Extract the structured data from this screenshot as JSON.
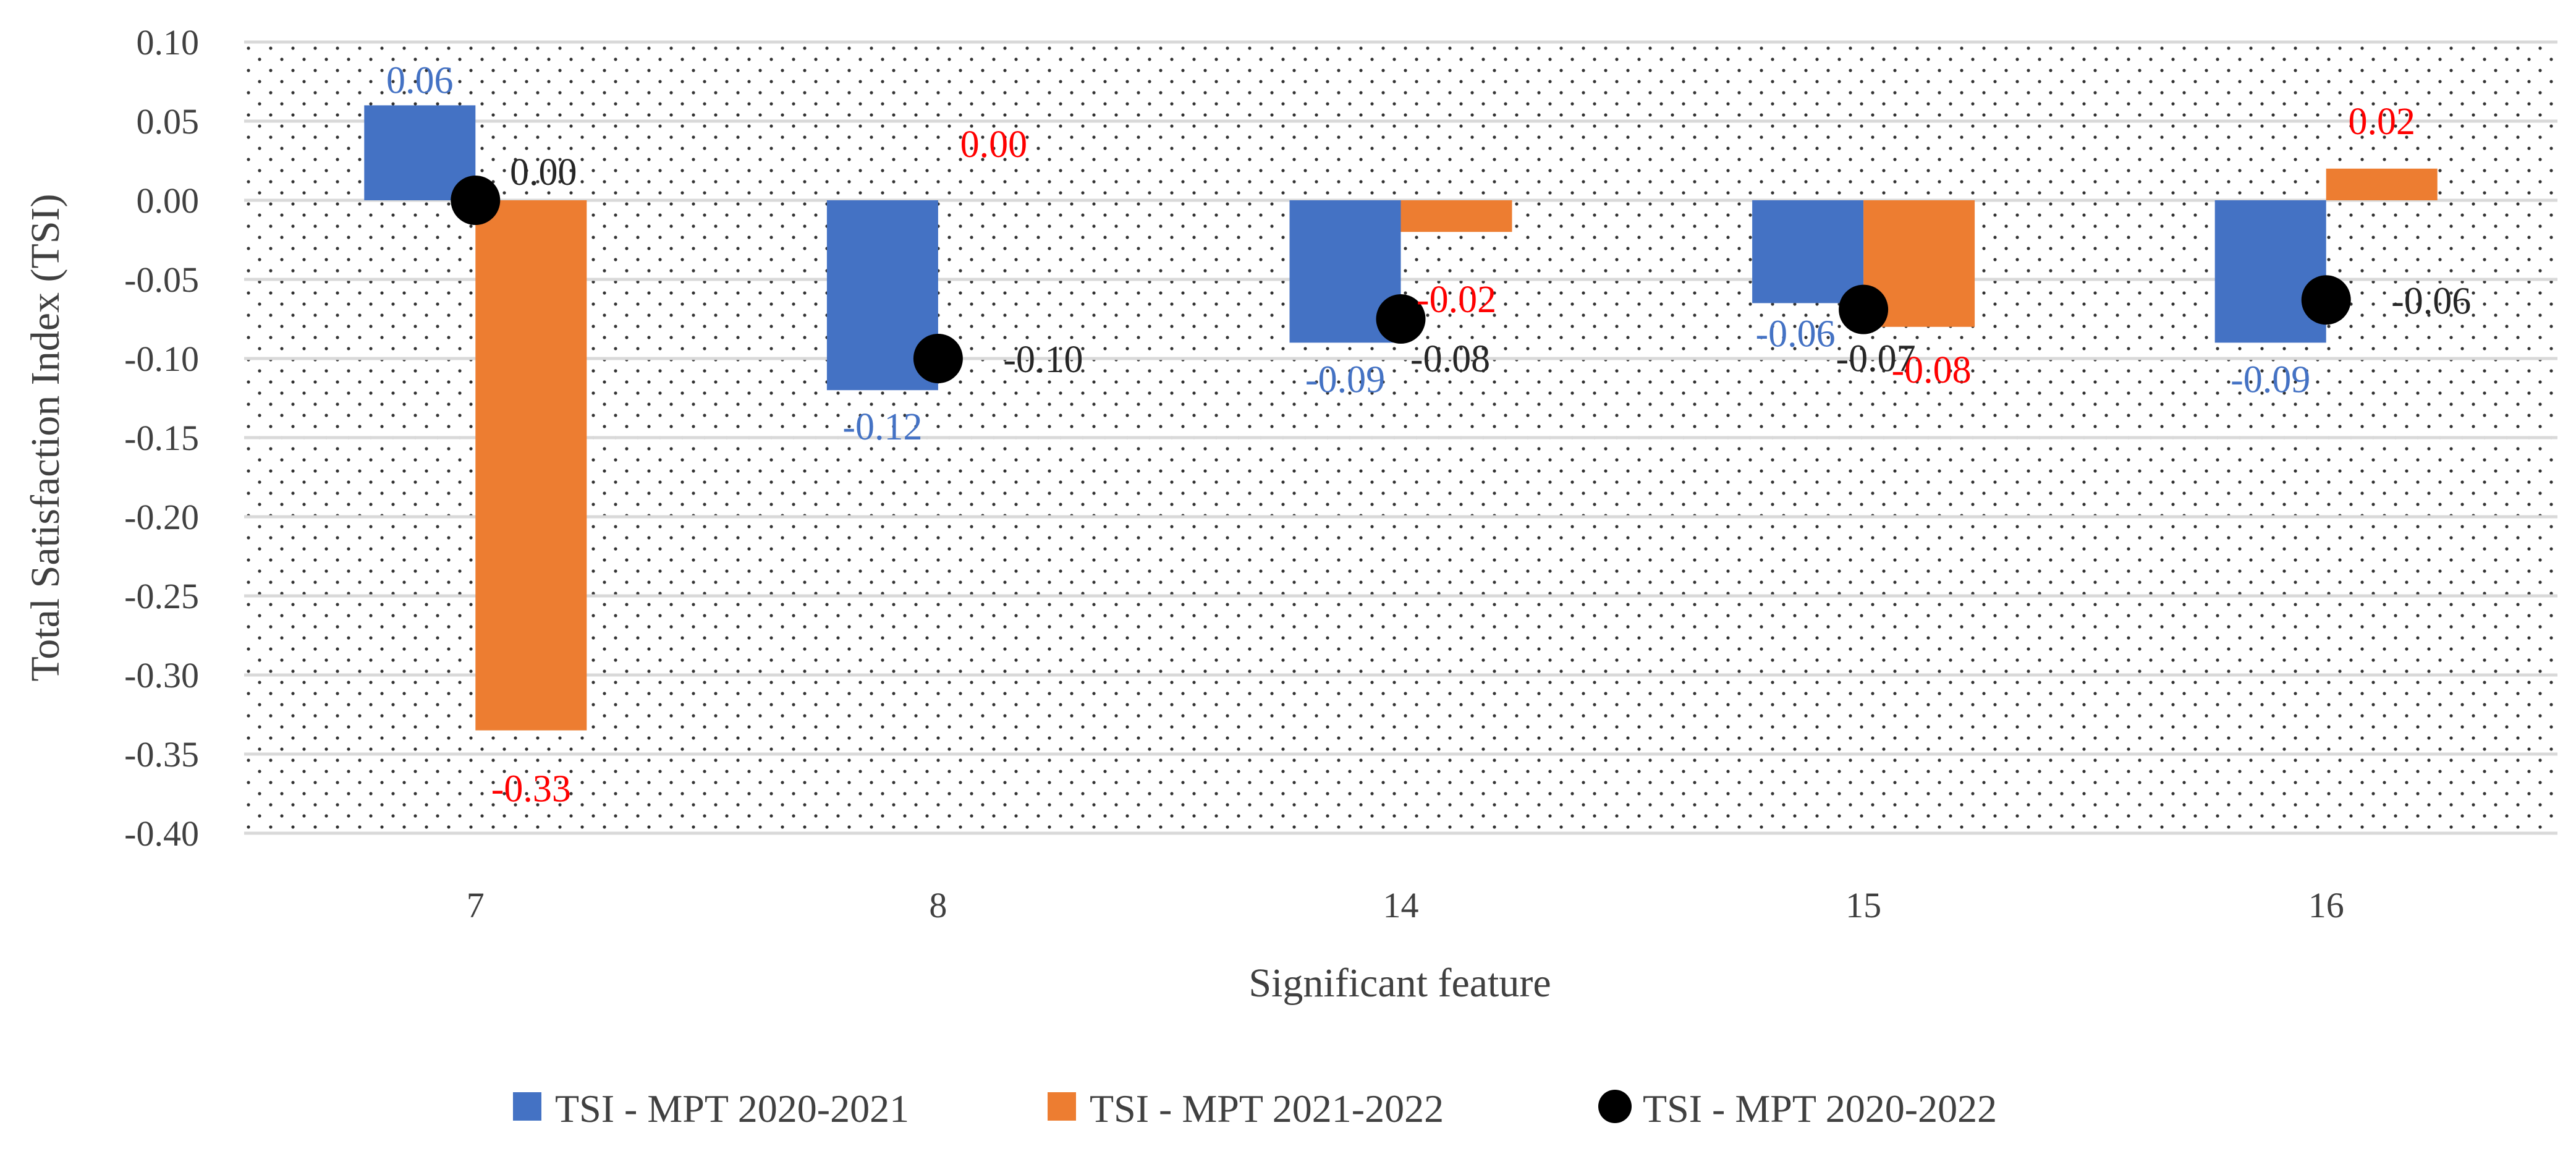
{
  "chart_data": {
    "type": "bar",
    "title": "",
    "xlabel": "Significant feature",
    "ylabel": "Total Satisfaction Index (TSI)",
    "categories": [
      "7",
      "8",
      "14",
      "15",
      "16"
    ],
    "ylim": [
      -0.4,
      0.1
    ],
    "ytick_step": 0.05,
    "ytick_labels": [
      "0.10",
      "0.05",
      "0.00",
      "-0.05",
      "-0.10",
      "-0.15",
      "-0.20",
      "-0.25",
      "-0.30",
      "-0.35",
      "-0.40"
    ],
    "grid": true,
    "legend_position": "bottom",
    "series": [
      {
        "name": "TSI - MPT 2020-2021",
        "kind": "bar",
        "color": "#4472C4",
        "label_color": "#4472C4",
        "values": [
          0.06,
          -0.12,
          -0.09,
          -0.065,
          -0.09
        ],
        "labels": [
          "0.06",
          "-0.12",
          "-0.09",
          "-0.06",
          "-0.09"
        ]
      },
      {
        "name": "TSI - MPT 2021-2022",
        "kind": "bar",
        "color": "#ED7D31",
        "label_color": "#FF0000",
        "values": [
          -0.335,
          0.0,
          -0.02,
          -0.08,
          0.02
        ],
        "labels": [
          "-0.33",
          "0.00",
          "-0.02",
          "-0.08",
          "0.02"
        ]
      },
      {
        "name": "TSI - MPT 2020-2022",
        "kind": "marker",
        "color": "#000000",
        "label_color": "#262626",
        "values": [
          0.0,
          -0.1,
          -0.075,
          -0.069,
          -0.063
        ],
        "labels": [
          "0.00",
          "-0.10",
          "-0.08",
          "-0.07",
          "-0.06"
        ]
      }
    ],
    "background_pattern": "dotted"
  }
}
